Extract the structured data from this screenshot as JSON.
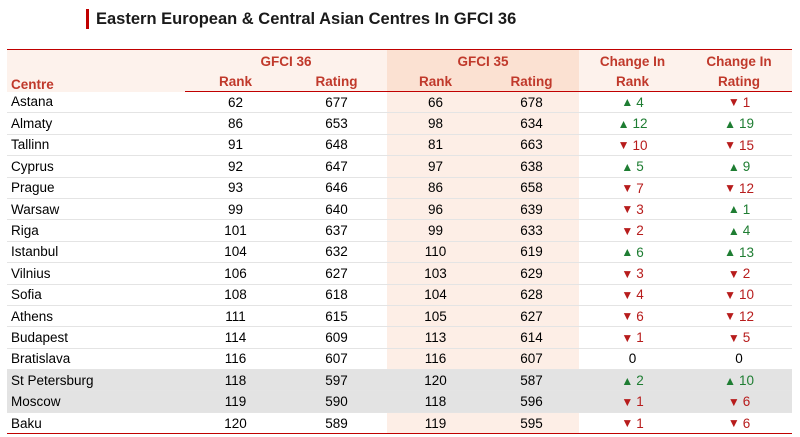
{
  "title": "Eastern European & Central Asian Centres In GFCI 36",
  "headers": {
    "centre": "Centre",
    "gfci36": "GFCI 36",
    "gfci35": "GFCI 35",
    "change_rank_1": "Change In",
    "change_rank_2": "Rank",
    "change_rating_1": "Change In",
    "change_rating_2": "Rating",
    "rank": "Rank",
    "rating": "Rating"
  },
  "colors": {
    "accent": "#c00000",
    "up": "#1e7d32",
    "down": "#b71c1c",
    "highlight_row": "#e3e3e3",
    "gfci35_band": "#fdeee6"
  },
  "rows": [
    {
      "centre": "Astana",
      "rank36": "62",
      "rating36": "677",
      "rank35": "66",
      "rating35": "678",
      "rank_dir": "up",
      "rank_chg": "4",
      "rating_dir": "down",
      "rating_chg": "1",
      "highlight": false
    },
    {
      "centre": "Almaty",
      "rank36": "86",
      "rating36": "653",
      "rank35": "98",
      "rating35": "634",
      "rank_dir": "up",
      "rank_chg": "12",
      "rating_dir": "up",
      "rating_chg": "19",
      "highlight": false
    },
    {
      "centre": "Tallinn",
      "rank36": "91",
      "rating36": "648",
      "rank35": "81",
      "rating35": "663",
      "rank_dir": "down",
      "rank_chg": "10",
      "rating_dir": "down",
      "rating_chg": "15",
      "highlight": false
    },
    {
      "centre": "Cyprus",
      "rank36": "92",
      "rating36": "647",
      "rank35": "97",
      "rating35": "638",
      "rank_dir": "up",
      "rank_chg": "5",
      "rating_dir": "up",
      "rating_chg": "9",
      "highlight": false
    },
    {
      "centre": "Prague",
      "rank36": "93",
      "rating36": "646",
      "rank35": "86",
      "rating35": "658",
      "rank_dir": "down",
      "rank_chg": "7",
      "rating_dir": "down",
      "rating_chg": "12",
      "highlight": false
    },
    {
      "centre": "Warsaw",
      "rank36": "99",
      "rating36": "640",
      "rank35": "96",
      "rating35": "639",
      "rank_dir": "down",
      "rank_chg": "3",
      "rating_dir": "up",
      "rating_chg": "1",
      "highlight": false
    },
    {
      "centre": "Riga",
      "rank36": "101",
      "rating36": "637",
      "rank35": "99",
      "rating35": "633",
      "rank_dir": "down",
      "rank_chg": "2",
      "rating_dir": "up",
      "rating_chg": "4",
      "highlight": false
    },
    {
      "centre": "Istanbul",
      "rank36": "104",
      "rating36": "632",
      "rank35": "110",
      "rating35": "619",
      "rank_dir": "up",
      "rank_chg": "6",
      "rating_dir": "up",
      "rating_chg": "13",
      "highlight": false
    },
    {
      "centre": "Vilnius",
      "rank36": "106",
      "rating36": "627",
      "rank35": "103",
      "rating35": "629",
      "rank_dir": "down",
      "rank_chg": "3",
      "rating_dir": "down",
      "rating_chg": "2",
      "highlight": false
    },
    {
      "centre": "Sofia",
      "rank36": "108",
      "rating36": "618",
      "rank35": "104",
      "rating35": "628",
      "rank_dir": "down",
      "rank_chg": "4",
      "rating_dir": "down",
      "rating_chg": "10",
      "highlight": false
    },
    {
      "centre": "Athens",
      "rank36": "111",
      "rating36": "615",
      "rank35": "105",
      "rating35": "627",
      "rank_dir": "down",
      "rank_chg": "6",
      "rating_dir": "down",
      "rating_chg": "12",
      "highlight": false
    },
    {
      "centre": "Budapest",
      "rank36": "114",
      "rating36": "609",
      "rank35": "113",
      "rating35": "614",
      "rank_dir": "down",
      "rank_chg": "1",
      "rating_dir": "down",
      "rating_chg": "5",
      "highlight": false
    },
    {
      "centre": "Bratislava",
      "rank36": "116",
      "rating36": "607",
      "rank35": "116",
      "rating35": "607",
      "rank_dir": "none",
      "rank_chg": "0",
      "rating_dir": "none",
      "rating_chg": "0",
      "highlight": false
    },
    {
      "centre": "St Petersburg",
      "rank36": "118",
      "rating36": "597",
      "rank35": "120",
      "rating35": "587",
      "rank_dir": "up",
      "rank_chg": "2",
      "rating_dir": "up",
      "rating_chg": "10",
      "highlight": true
    },
    {
      "centre": "Moscow",
      "rank36": "119",
      "rating36": "590",
      "rank35": "118",
      "rating35": "596",
      "rank_dir": "down",
      "rank_chg": "1",
      "rating_dir": "down",
      "rating_chg": "6",
      "highlight": true
    },
    {
      "centre": "Baku",
      "rank36": "120",
      "rating36": "589",
      "rank35": "119",
      "rating35": "595",
      "rank_dir": "down",
      "rank_chg": "1",
      "rating_dir": "down",
      "rating_chg": "6",
      "highlight": false
    }
  ]
}
